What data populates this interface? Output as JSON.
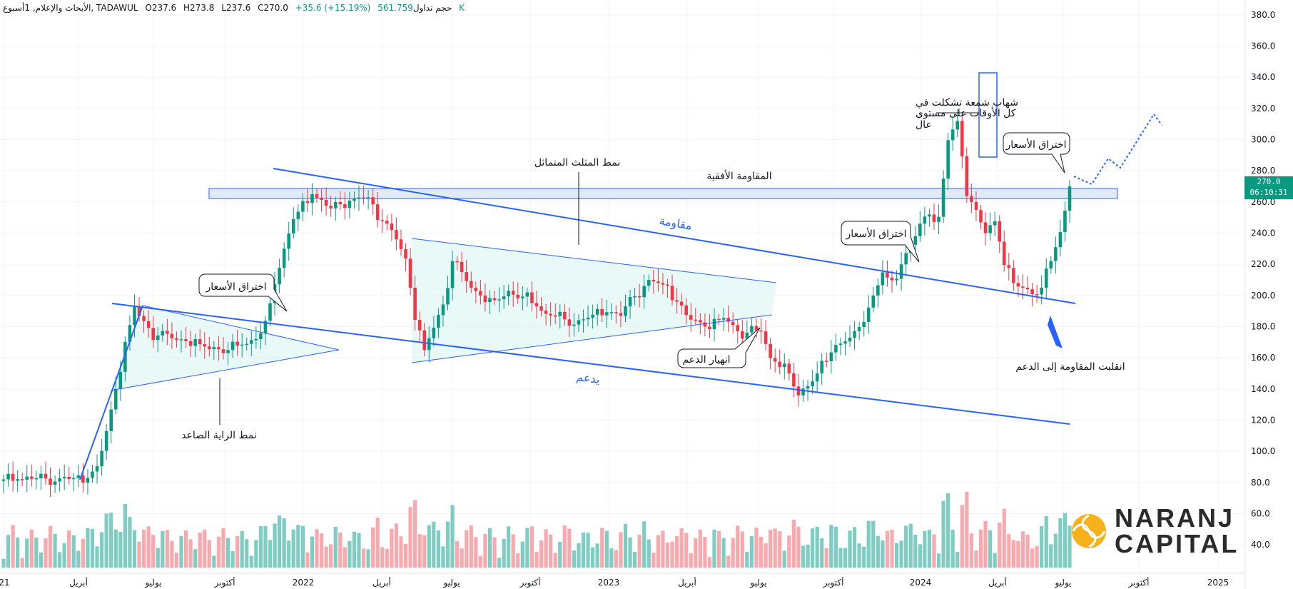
{
  "header": {
    "symbol": "الأبحاث والإعلام, 1أسبوع, TADAWUL",
    "open": "O237.6",
    "high": "H273.8",
    "low": "L237.6",
    "close": "C270.0",
    "change": "+35.6 (+15.19%)",
    "volume_label": "حجم تداول",
    "volume": "561.759 K"
  },
  "price_tag": {
    "price": "270.0",
    "countdown": "06:10:31"
  },
  "logo": {
    "line1": "NARANJ",
    "line2": "CAPITAL"
  },
  "annotations": {
    "ascending_flag": "نمط الراية الصاعد",
    "breakout_1": "اختراق الأسعار",
    "sym_triangle": "نمط المثلث المتماثل",
    "horizontal_resistance": "المقاومة الأفقية",
    "resistance": "مقاومة",
    "support": "يدعم",
    "support_break": "انهيار الدعم",
    "breakout_2": "اختراق الأسعار",
    "breakout_3": "اختراق الأسعار",
    "shooting_star_1": "شهاب شمعة تشكلت في",
    "shooting_star_2": "كل الأوقات على مستوى",
    "shooting_star_3": "عال",
    "flip": "انقلبت المقاومة إلى الدعم"
  },
  "colors": {
    "up": "#089981",
    "down": "#f23645",
    "line": "#2962ff",
    "vol_up": "#7fccc2",
    "vol_down": "#f7a9ae"
  },
  "chart_data": {
    "type": "candlestick",
    "yaxis_ticks": [
      "380.0",
      "360.0",
      "340.0",
      "320.0",
      "300.0",
      "280.0",
      "260.0",
      "240.0",
      "220.0",
      "200.0",
      "180.0",
      "160.0",
      "140.0",
      "120.0",
      "100.0",
      "80.0",
      "60.0",
      "40.0"
    ],
    "ylim": [
      30,
      385
    ],
    "xaxis_ticks": [
      "21",
      "أبريل",
      "يوليو",
      "أكتوبر",
      "2022",
      "أبريل",
      "يوليو",
      "أكتوبر",
      "2023",
      "أبريل",
      "يوليو",
      "أكتوبر",
      "2024",
      "أبريل",
      "يوليو",
      "أكتوبر",
      "2025"
    ],
    "anchors": [
      [
        0,
        82
      ],
      [
        18,
        83
      ],
      [
        20,
        88
      ],
      [
        23,
        125
      ],
      [
        26,
        170
      ],
      [
        28,
        192
      ],
      [
        32,
        175
      ],
      [
        40,
        170
      ],
      [
        48,
        165
      ],
      [
        54,
        172
      ],
      [
        56,
        180
      ],
      [
        58,
        210
      ],
      [
        62,
        250
      ],
      [
        66,
        265
      ],
      [
        70,
        255
      ],
      [
        74,
        262
      ],
      [
        78,
        263
      ],
      [
        80,
        252
      ],
      [
        84,
        236
      ],
      [
        86,
        222
      ],
      [
        88,
        188
      ],
      [
        90,
        165
      ],
      [
        92,
        180
      ],
      [
        94,
        195
      ],
      [
        96,
        222
      ],
      [
        100,
        205
      ],
      [
        104,
        195
      ],
      [
        108,
        203
      ],
      [
        112,
        198
      ],
      [
        116,
        188
      ],
      [
        122,
        183
      ],
      [
        128,
        190
      ],
      [
        132,
        187
      ],
      [
        134,
        196
      ],
      [
        138,
        210
      ],
      [
        142,
        206
      ],
      [
        146,
        186
      ],
      [
        150,
        180
      ],
      [
        154,
        186
      ],
      [
        158,
        176
      ],
      [
        162,
        177
      ],
      [
        164,
        160
      ],
      [
        168,
        150
      ],
      [
        170,
        137
      ],
      [
        174,
        150
      ],
      [
        178,
        168
      ],
      [
        182,
        173
      ],
      [
        186,
        200
      ],
      [
        188,
        215
      ],
      [
        190,
        208
      ],
      [
        194,
        232
      ],
      [
        196,
        244
      ],
      [
        198,
        252
      ],
      [
        200,
        250
      ],
      [
        202,
        300
      ],
      [
        204,
        312
      ],
      [
        206,
        268
      ],
      [
        208,
        252
      ],
      [
        210,
        240
      ],
      [
        212,
        247
      ],
      [
        214,
        222
      ],
      [
        216,
        208
      ],
      [
        218,
        205
      ],
      [
        220,
        203
      ],
      [
        222,
        205
      ],
      [
        224,
        222
      ],
      [
        226,
        240
      ],
      [
        228,
        270
      ]
    ],
    "volume_ylim": [
      0,
      360
    ]
  }
}
